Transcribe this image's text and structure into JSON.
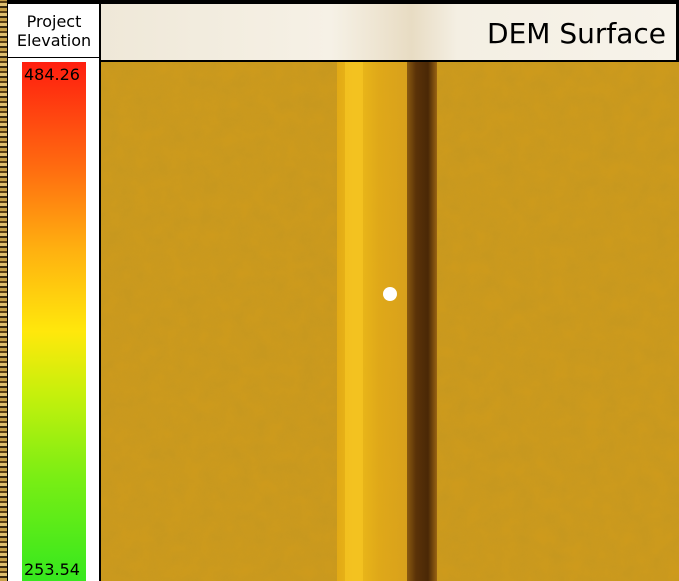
{
  "legend": {
    "title_line1": "Project",
    "title_line2": "Elevation",
    "max_value": "484.26",
    "min_value": "253.54",
    "ramp_colors": [
      "#ff1e0f",
      "#ff6a10",
      "#ffb010",
      "#ffe80c",
      "#c6f00c",
      "#7aee14",
      "#36e81e"
    ]
  },
  "map": {
    "title": "DEM Surface",
    "surface_color": "#cf9a1c",
    "marker_icon": "location-dot-icon"
  }
}
